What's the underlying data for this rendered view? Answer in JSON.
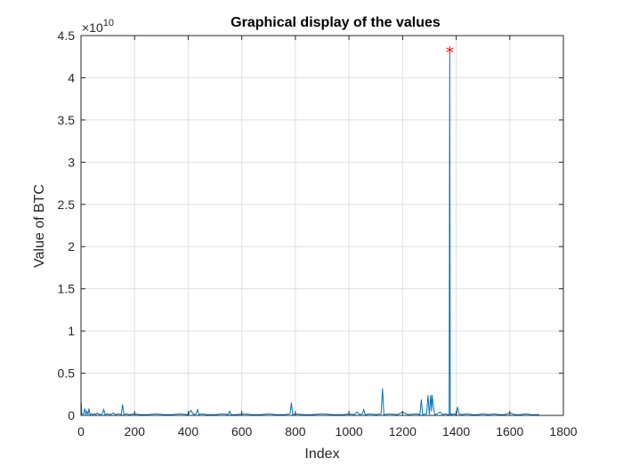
{
  "chart_data": {
    "type": "line",
    "title": "Graphical display of the values",
    "xlabel": "Index",
    "ylabel": "Value of BTC",
    "xlim": [
      0,
      1800
    ],
    "ylim": [
      0,
      4.5
    ],
    "y_multiplier_label": "×10",
    "y_multiplier_exponent": "10",
    "x_ticks": [
      "0",
      "200",
      "400",
      "600",
      "800",
      "1000",
      "1200",
      "1400",
      "1600",
      "1800"
    ],
    "y_ticks": [
      "0",
      "0.5",
      "1",
      "1.5",
      "2",
      "2.5",
      "3",
      "3.5",
      "4",
      "4.5"
    ],
    "grid": true,
    "series": [
      {
        "color": "#0072bd",
        "x": [
          1,
          3,
          6,
          10,
          14,
          18,
          22,
          26,
          30,
          34,
          38,
          45,
          50,
          55,
          60,
          70,
          80,
          85,
          90,
          100,
          110,
          120,
          130,
          140,
          150,
          155,
          160,
          170,
          180,
          200,
          220,
          250,
          280,
          310,
          340,
          370,
          400,
          410,
          420,
          430,
          435,
          440,
          450,
          470,
          500,
          530,
          550,
          555,
          560,
          580,
          610,
          640,
          670,
          700,
          730,
          760,
          780,
          785,
          790,
          800,
          830,
          860,
          900,
          940,
          980,
          1000,
          1020,
          1030,
          1040,
          1050,
          1055,
          1060,
          1080,
          1100,
          1120,
          1125,
          1130,
          1150,
          1180,
          1200,
          1220,
          1250,
          1265,
          1270,
          1275,
          1290,
          1295,
          1300,
          1305,
          1308,
          1310,
          1315,
          1320,
          1330,
          1340,
          1350,
          1360,
          1370,
          1374,
          1376,
          1378,
          1380,
          1385,
          1390,
          1400,
          1405,
          1410,
          1420,
          1440,
          1460,
          1480,
          1500,
          1520,
          1540,
          1560,
          1580,
          1600,
          1620,
          1640,
          1660,
          1680,
          1700,
          1710
        ],
        "y": [
          0.15,
          0.02,
          0.01,
          0.02,
          0.08,
          0.01,
          0.05,
          0.01,
          0.08,
          0.01,
          0.02,
          0.01,
          0.02,
          0.01,
          0.03,
          0.01,
          0.02,
          0.07,
          0.01,
          0.02,
          0.01,
          0.03,
          0.01,
          0.02,
          0.01,
          0.13,
          0.01,
          0.02,
          0.01,
          0.02,
          0.01,
          0.01,
          0.02,
          0.01,
          0.01,
          0.02,
          0.01,
          0.06,
          0.01,
          0.02,
          0.07,
          0.01,
          0.02,
          0.01,
          0.01,
          0.02,
          0.01,
          0.05,
          0.01,
          0.01,
          0.02,
          0.01,
          0.01,
          0.02,
          0.01,
          0.01,
          0.02,
          0.15,
          0.01,
          0.02,
          0.01,
          0.01,
          0.02,
          0.01,
          0.01,
          0.02,
          0.01,
          0.04,
          0.01,
          0.02,
          0.07,
          0.01,
          0.02,
          0.01,
          0.02,
          0.32,
          0.01,
          0.02,
          0.01,
          0.04,
          0.01,
          0.02,
          0.01,
          0.19,
          0.01,
          0.02,
          0.24,
          0.01,
          0.24,
          0.05,
          0.24,
          0.1,
          0.01,
          0.02,
          0.04,
          0.01,
          0.02,
          0.01,
          0.01,
          4.3,
          0.01,
          0.02,
          0.01,
          0.02,
          0.01,
          0.1,
          0.02,
          0.01,
          0.02,
          0.01,
          0.01,
          0.02,
          0.01,
          0.02,
          0.01,
          0.01,
          0.03,
          0.01,
          0.01,
          0.02,
          0.01,
          0.01,
          0.01
        ]
      }
    ],
    "markers": [
      {
        "x": 1376,
        "y": 4.32,
        "symbol": "*",
        "color": "#ff0000"
      }
    ]
  }
}
